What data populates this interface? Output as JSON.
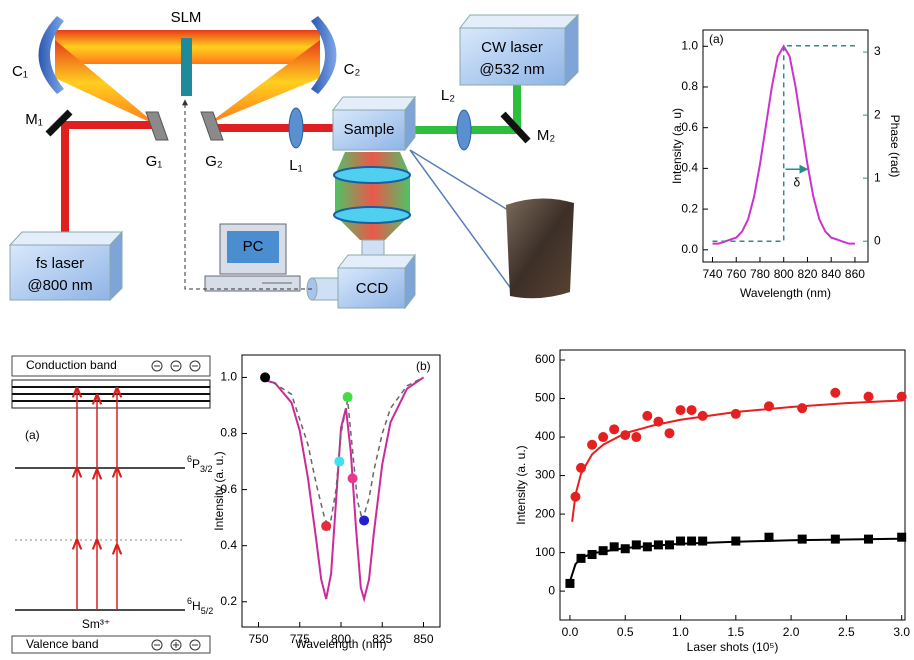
{
  "setup": {
    "slm": "SLM",
    "c1": "C₁",
    "c2": "C₂",
    "m1": "M₁",
    "m2": "M₂",
    "g1": "G₁",
    "g2": "G₂",
    "l1": "L₁",
    "l2": "L₂",
    "sample": "Sample",
    "cw_laser": [
      "CW laser",
      "@532 nm"
    ],
    "fs_laser": [
      "fs laser",
      "@800 nm"
    ],
    "pc": "PC",
    "ccd": "CCD"
  },
  "energy_diagram": {
    "conduction_band": "Conduction band",
    "label": "(a)",
    "upper_level": {
      "sup": "6",
      "base": "P",
      "sub": "3/2"
    },
    "ground_level": {
      "sup": "6",
      "base": "H",
      "sub": "5/2"
    },
    "ion": "Sm³⁺",
    "valence_band": "Valence band"
  },
  "chart_data": [
    {
      "type": "line",
      "xlabel": "Wavelength (nm)",
      "ylabel": "Intensity (a. u)",
      "y2label": "Phase (rad)",
      "annotations": [
        "(a)",
        "δ"
      ],
      "xlim": [
        732,
        871
      ],
      "xticks": [
        740,
        760,
        780,
        800,
        820,
        840,
        860
      ],
      "ylim": [
        -0.06,
        1.08
      ],
      "yticks": [
        {
          "value": 0,
          "label": "0.0"
        },
        0.2,
        0.4,
        0.6,
        0.8,
        {
          "value": 1,
          "label": "1.0"
        }
      ],
      "y2lim": [
        -0.33,
        3.35
      ],
      "y2ticks": [
        0,
        1,
        2,
        3
      ],
      "y2color": "#2e8b8b",
      "series": [
        {
          "color": "#cc33cc",
          "x": [
            740,
            745,
            750,
            755,
            760,
            765,
            770,
            775,
            780,
            785,
            790,
            795,
            800,
            805,
            810,
            815,
            820,
            825,
            830,
            835,
            840,
            845,
            850,
            855,
            860
          ],
          "values": [
            0.03,
            0.03,
            0.04,
            0.05,
            0.06,
            0.09,
            0.15,
            0.26,
            0.42,
            0.61,
            0.8,
            0.95,
            1.0,
            0.95,
            0.8,
            0.61,
            0.42,
            0.26,
            0.15,
            0.09,
            0.06,
            0.05,
            0.04,
            0.03,
            0.03
          ]
        },
        {
          "color": "#2e8b8b",
          "dash": true,
          "axis": "y2",
          "x": [
            740,
            800,
            800,
            860
          ],
          "values": [
            0,
            0,
            3.1,
            3.1
          ]
        }
      ]
    },
    {
      "type": "line",
      "xlabel": "Wavelength (nm)",
      "ylabel": "Intensity (a. u.)",
      "annotations": [
        "(b)"
      ],
      "xlim": [
        740,
        860
      ],
      "xticks": [
        750,
        775,
        800,
        825,
        850
      ],
      "ylim": [
        0.11,
        1.08
      ],
      "yticks": [
        0.2,
        0.4,
        0.6,
        0.8,
        {
          "value": 1,
          "label": "1.0"
        }
      ],
      "series": [
        {
          "color": "#cc2a9a",
          "x": [
            754,
            760,
            770,
            775,
            780,
            785,
            788,
            791,
            794,
            797,
            800,
            803,
            806,
            809,
            812,
            814,
            817,
            820,
            825,
            830,
            840,
            850
          ],
          "values": [
            0.99,
            0.98,
            0.91,
            0.81,
            0.64,
            0.42,
            0.28,
            0.21,
            0.3,
            0.56,
            0.82,
            0.89,
            0.73,
            0.47,
            0.25,
            0.21,
            0.28,
            0.45,
            0.69,
            0.84,
            0.96,
            1.0
          ]
        },
        {
          "color": "#666666",
          "dash": true,
          "x": [
            754,
            770,
            780,
            785,
            790,
            793,
            797,
            800,
            804,
            807,
            810,
            813,
            817,
            820,
            825,
            830,
            840,
            850
          ],
          "values": [
            1.0,
            0.94,
            0.76,
            0.62,
            0.5,
            0.46,
            0.6,
            0.8,
            0.92,
            0.74,
            0.56,
            0.49,
            0.57,
            0.67,
            0.8,
            0.89,
            0.97,
            1.0
          ]
        },
        {
          "marker": "circle",
          "x": [
            754,
            791,
            799,
            804,
            807,
            814
          ],
          "values": [
            1.0,
            0.47,
            0.7,
            0.93,
            0.64,
            0.49
          ],
          "colors": [
            "#000000",
            "#e8283c",
            "#3fe0f0",
            "#44dd44",
            "#e83a8c",
            "#2020d0"
          ]
        }
      ]
    },
    {
      "type": "scatter",
      "xlabel": "Laser shots (10⁵)",
      "ylabel": "Intensity (a. u.)",
      "xlim": [
        -0.09,
        3.03
      ],
      "xticks": [
        {
          "value": 0,
          "label": "0.0"
        },
        0.5,
        {
          "value": 1,
          "label": "1.0"
        },
        1.5,
        {
          "value": 2,
          "label": "2.0"
        },
        2.5,
        {
          "value": 3,
          "label": "3.0"
        }
      ],
      "ylim": [
        -75,
        626
      ],
      "yticks": [
        0,
        100,
        200,
        300,
        400,
        500,
        600
      ],
      "series": [
        {
          "color": "#e52020",
          "x": [
            0.02,
            0.05,
            0.1,
            0.2,
            0.3,
            0.5,
            0.75,
            1,
            1.5,
            2,
            2.5,
            3
          ],
          "values": [
            180,
            250,
            305,
            355,
            380,
            410,
            430,
            445,
            465,
            478,
            488,
            495
          ]
        },
        {
          "color": "#000000",
          "x": [
            0,
            0.05,
            0.1,
            0.2,
            0.5,
            1,
            1.5,
            2,
            2.5,
            3
          ],
          "values": [
            25,
            70,
            85,
            98,
            112,
            123,
            128,
            132,
            134,
            136
          ]
        },
        {
          "color": "#e52020",
          "marker": "circle",
          "x": [
            0.05,
            0.1,
            0.2,
            0.3,
            0.4,
            0.5,
            0.6,
            0.7,
            0.8,
            0.9,
            1.0,
            1.1,
            1.2,
            1.5,
            1.8,
            2.1,
            2.4,
            2.7,
            3.0
          ],
          "values": [
            245,
            320,
            380,
            400,
            420,
            405,
            400,
            455,
            440,
            410,
            470,
            470,
            455,
            460,
            480,
            475,
            515,
            505,
            505
          ]
        },
        {
          "color": "#000000",
          "marker": "square",
          "x": [
            0,
            0.1,
            0.2,
            0.3,
            0.4,
            0.5,
            0.6,
            0.7,
            0.8,
            0.9,
            1.0,
            1.1,
            1.2,
            1.5,
            1.8,
            2.1,
            2.4,
            2.7,
            3.0
          ],
          "values": [
            20,
            85,
            95,
            105,
            115,
            110,
            120,
            115,
            120,
            120,
            130,
            130,
            130,
            130,
            140,
            135,
            135,
            135,
            140
          ]
        }
      ]
    }
  ]
}
